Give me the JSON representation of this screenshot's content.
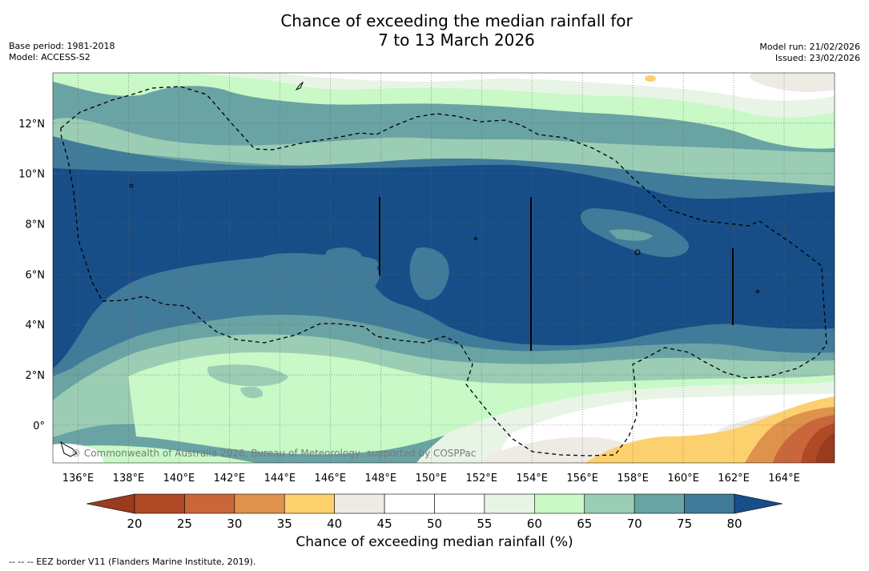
{
  "title": {
    "line1": "Chance of exceeding the median rainfall for",
    "line2": "7 to 13 March 2026"
  },
  "meta_left": {
    "base_period": "Base period: 1981-2018",
    "model": "Model: ACCESS-S2"
  },
  "meta_right": {
    "model_run": "Model run: 21/02/2026",
    "issued": "Issued: 23/02/2026"
  },
  "copyright": "© Commonwealth of Australia 2026, Bureau of Meteorology, supported by COSPPac",
  "map": {
    "lon_range": [
      135,
      166
    ],
    "lat_range": [
      -1.5,
      14
    ],
    "lon_ticks": [
      "136°E",
      "138°E",
      "140°E",
      "142°E",
      "144°E",
      "146°E",
      "148°E",
      "150°E",
      "152°E",
      "154°E",
      "156°E",
      "158°E",
      "160°E",
      "162°E",
      "164°E"
    ],
    "lat_ticks": [
      "0°",
      "2°N",
      "4°N",
      "6°N",
      "8°N",
      "10°N",
      "12°N"
    ]
  },
  "colorbar": {
    "title": "Chance of exceeding median rainfall (%)",
    "ticks": [
      "20",
      "25",
      "30",
      "35",
      "40",
      "45",
      "50",
      "55",
      "60",
      "65",
      "70",
      "75",
      "80"
    ],
    "colors": [
      "#9a3a1e",
      "#b04a26",
      "#c9673a",
      "#de924c",
      "#fdd06e",
      "#eeebe4",
      "#ffffff",
      "#ffffff",
      "#e8f5e6",
      "#c8f9c6",
      "#9bcdb5",
      "#6aa3a3",
      "#417b9a",
      "#174e88"
    ]
  },
  "legend_note": "--  --  -- EEZ border V11 (Flanders Marine Institute, 2019)."
}
